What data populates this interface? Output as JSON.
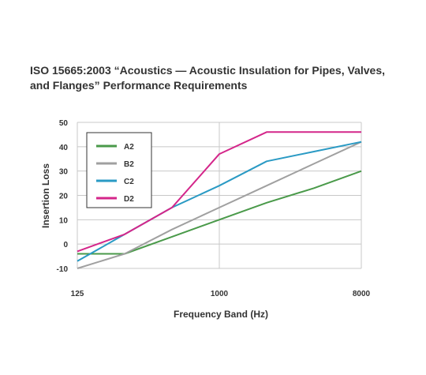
{
  "chart_data": {
    "type": "line",
    "title": "ISO 15665:2003 “Acoustics — Acoustic Insulation for Pipes, Valves, and Flanges” Performance Requirements",
    "xlabel": "Frequency Band (Hz)",
    "ylabel": "Insertion Loss",
    "x_scale": "log",
    "x": [
      125,
      250,
      500,
      1000,
      2000,
      4000,
      8000
    ],
    "xlim": [
      125,
      8000
    ],
    "xticks": [
      125,
      1000,
      8000
    ],
    "ylim": [
      -10,
      50
    ],
    "yticks": [
      -10,
      0,
      10,
      20,
      30,
      40,
      50
    ],
    "grid": true,
    "legend_position": "top-left",
    "series": [
      {
        "name": "A2",
        "color": "#4a9a4a",
        "values": [
          -4,
          -4,
          3,
          10,
          17,
          23,
          30
        ]
      },
      {
        "name": "B2",
        "color": "#a0a0a0",
        "values": [
          -10,
          -4,
          6,
          15,
          24,
          33,
          42
        ]
      },
      {
        "name": "C2",
        "color": "#2a9ac4",
        "values": [
          -7,
          4,
          15,
          24,
          34,
          38,
          42
        ]
      },
      {
        "name": "D2",
        "color": "#d4268a",
        "values": [
          -3,
          4,
          15,
          37,
          46,
          46,
          46
        ]
      }
    ]
  }
}
